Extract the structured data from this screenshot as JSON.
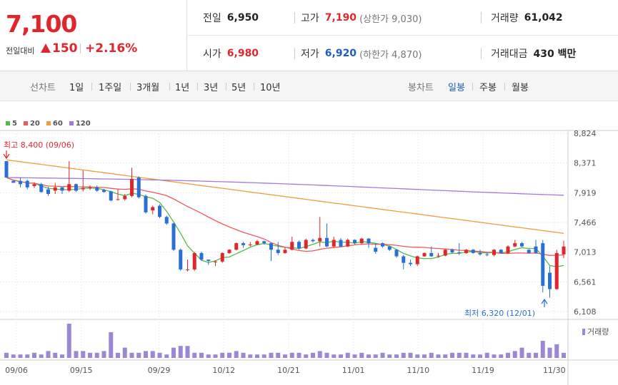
{
  "header": {
    "price": "7,100",
    "change_label": "전일대비",
    "change_value": "150",
    "change_pct": "+2.16%",
    "prev_close_label": "전일",
    "prev_close": "6,950",
    "high_label": "고가",
    "high": "7,190",
    "upper_limit_label": "(상한가 9,030)",
    "volume_label": "거래량",
    "volume": "61,042",
    "open_label": "시가",
    "open": "6,980",
    "low_label": "저가",
    "low": "6,920",
    "lower_limit_label": "(하한가 4,870)",
    "amount_label": "거래대금",
    "amount": "430 백만"
  },
  "toolbar": {
    "line_label": "선차트",
    "line_periods": [
      "1일",
      "1주일",
      "3개월",
      "1년",
      "3년",
      "5년",
      "10년"
    ],
    "candle_label": "봉차트",
    "candle_periods": [
      "일봉",
      "주봉",
      "월봉"
    ],
    "candle_active": "일봉"
  },
  "colors": {
    "up": "#e0262c",
    "down": "#2a6fd6",
    "ma5": "#55b94a",
    "ma20": "#ec5a5a",
    "ma60": "#f49b3c",
    "ma120": "#a37ad8",
    "volume": "#9b87d3"
  },
  "chart_data": {
    "type": "candlestick",
    "legend": [
      "5",
      "20",
      "60",
      "120"
    ],
    "y_ticks": [
      "8,824",
      "8,371",
      "7,919",
      "7,466",
      "7,013",
      "6,561",
      "6,108"
    ],
    "ylim": [
      6108,
      8824
    ],
    "x_ticks": [
      "09/06",
      "09/15",
      "09/29",
      "10/12",
      "10/21",
      "11/01",
      "11/10",
      "11/19",
      "11/30"
    ],
    "max_annotation": "최고 8,400 (09/06)",
    "min_annotation": "최저 6,320 (12/01)",
    "volume_label": "거래량",
    "candles": [
      [
        8400,
        8150,
        8150,
        8400
      ],
      [
        8100,
        8070,
        8070,
        8100
      ],
      [
        8100,
        8050,
        8000,
        8150
      ],
      [
        8100,
        8000,
        7970,
        8120
      ],
      [
        8020,
        8050,
        7990,
        8080
      ],
      [
        8050,
        7930,
        7920,
        8070
      ],
      [
        7970,
        7900,
        7870,
        8010
      ],
      [
        7950,
        8000,
        7900,
        8070
      ],
      [
        8000,
        7950,
        7900,
        8000
      ],
      [
        7950,
        8050,
        7930,
        8400
      ],
      [
        8050,
        7950,
        7930,
        8060
      ],
      [
        7970,
        7990,
        7940,
        8260
      ],
      [
        8000,
        8000,
        7960,
        8030
      ],
      [
        8000,
        7950,
        7930,
        8030
      ],
      [
        7960,
        7930,
        7920,
        7980
      ],
      [
        7940,
        7800,
        7790,
        7950
      ],
      [
        7820,
        7820,
        7800,
        7980
      ],
      [
        7820,
        7870,
        7800,
        7900
      ],
      [
        7870,
        8130,
        7850,
        8300
      ],
      [
        8150,
        7850,
        7830,
        8170
      ],
      [
        7870,
        7620,
        7600,
        7890
      ],
      [
        7650,
        7700,
        7590,
        7720
      ],
      [
        7720,
        7550,
        7530,
        7740
      ],
      [
        7550,
        7450,
        7430,
        7570
      ],
      [
        7450,
        7050,
        7030,
        7460
      ],
      [
        7050,
        6750,
        6730,
        7070
      ],
      [
        6750,
        6750,
        6720,
        6900
      ],
      [
        6750,
        7000,
        6730,
        7010
      ],
      [
        7000,
        6900,
        6880,
        7020
      ],
      [
        6900,
        6880,
        6820,
        6900
      ],
      [
        6870,
        6870,
        6800,
        6890
      ],
      [
        6870,
        7000,
        6850,
        7010
      ],
      [
        7000,
        7050,
        6990,
        7060
      ],
      [
        7050,
        7150,
        7040,
        7160
      ],
      [
        7150,
        7120,
        7080,
        7170
      ],
      [
        7120,
        7130,
        7100,
        7170
      ],
      [
        7130,
        7180,
        7120,
        7200
      ],
      [
        7180,
        7150,
        7130,
        7190
      ],
      [
        7150,
        7050,
        6880,
        7160
      ],
      [
        7050,
        7000,
        6970,
        7170
      ],
      [
        7000,
        7050,
        6990,
        7080
      ],
      [
        7050,
        7170,
        7040,
        7250
      ],
      [
        7170,
        7070,
        7050,
        7190
      ],
      [
        7070,
        7200,
        7060,
        7220
      ],
      [
        7200,
        7180,
        7160,
        7220
      ],
      [
        7180,
        7230,
        7100,
        7550
      ],
      [
        7230,
        7100,
        7090,
        7450
      ],
      [
        7100,
        7200,
        7080,
        7250
      ],
      [
        7200,
        7100,
        7090,
        7230
      ],
      [
        7100,
        7200,
        7090,
        7220
      ],
      [
        7200,
        7150,
        7130,
        7210
      ],
      [
        7150,
        7220,
        7140,
        7230
      ],
      [
        7220,
        7150,
        7080,
        7230
      ],
      [
        7080,
        7020,
        6990,
        7150
      ],
      [
        7150,
        7100,
        7080,
        7160
      ],
      [
        7100,
        7050,
        7030,
        7110
      ],
      [
        7050,
        6950,
        6930,
        7060
      ],
      [
        6950,
        6850,
        6750,
        6970
      ],
      [
        6850,
        6830,
        6800,
        6900
      ],
      [
        6830,
        6950,
        6800,
        6960
      ],
      [
        6950,
        7000,
        6940,
        7010
      ],
      [
        7000,
        6950,
        6940,
        7100
      ],
      [
        6950,
        6960,
        6930,
        7000
      ],
      [
        6960,
        7050,
        6950,
        7060
      ],
      [
        7050,
        7010,
        6990,
        7070
      ],
      [
        7010,
        7000,
        6970,
        7150
      ],
      [
        7000,
        7050,
        6990,
        7060
      ],
      [
        7050,
        7000,
        6990,
        7060
      ],
      [
        7000,
        6980,
        6960,
        7050
      ],
      [
        6980,
        6970,
        6950,
        7000
      ],
      [
        6970,
        7050,
        6950,
        7060
      ],
      [
        7050,
        7000,
        6990,
        7060
      ],
      [
        7000,
        7100,
        6990,
        7120
      ],
      [
        7100,
        7150,
        7090,
        7200
      ],
      [
        7150,
        7100,
        7090,
        7170
      ],
      [
        7050,
        7000,
        6990,
        7060
      ],
      [
        7100,
        7000,
        6990,
        7200
      ],
      [
        7150,
        6500,
        6400,
        7200
      ],
      [
        6700,
        6450,
        6320,
        6800
      ],
      [
        6450,
        7000,
        6440,
        7050
      ],
      [
        6980,
        7100,
        6920,
        7190
      ]
    ],
    "volumes": [
      3,
      2,
      2,
      2,
      3,
      2,
      4,
      3,
      2,
      20,
      4,
      4,
      3,
      3,
      4,
      15,
      3,
      6,
      3,
      3,
      4,
      4,
      3,
      2,
      6,
      7,
      7,
      3,
      3,
      2,
      2,
      3,
      3,
      4,
      3,
      2,
      2,
      2,
      3,
      3,
      2,
      3,
      3,
      2,
      3,
      4,
      3,
      2,
      2,
      3,
      2,
      3,
      2,
      2,
      3,
      2,
      2,
      3,
      3,
      2,
      2,
      3,
      2,
      2,
      3,
      3,
      3,
      2,
      2,
      3,
      2,
      2,
      3,
      4,
      6,
      3,
      3,
      10,
      6,
      8,
      3
    ]
  }
}
